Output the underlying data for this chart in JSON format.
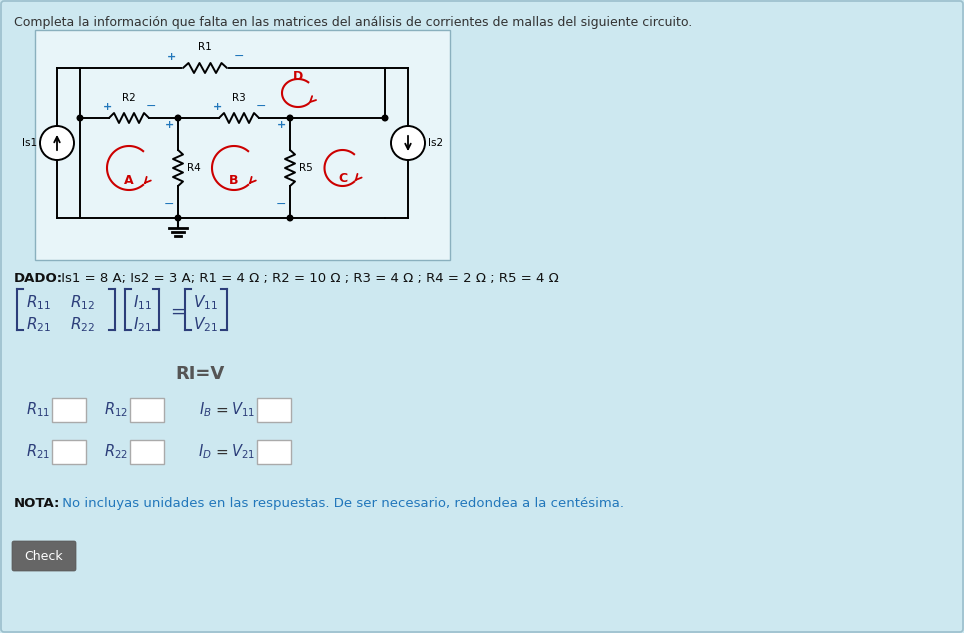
{
  "bg_color": "#cde8f0",
  "title_text": "Completa la información que falta en las matrices del análisis de corrientes de mallas del siguiente circuito.",
  "dado_label": "DADO:",
  "dado_rest": " Is1 = 8 A; Is2 = 3 A; R1 = 4 Ω ; R2 = 10 Ω ; R3 = 4 Ω ; R4 = 2 Ω ; R5 = 4 Ω",
  "nota_label": "NOTA:",
  "nota_rest": " No incluyas unidades en las respuestas. De ser necesario, redondea a la centésima.",
  "check_text": "Check",
  "ri_eq_v": "RI=V",
  "matrix_color": "#2c3e7a",
  "circuit_border": "#8ab0be",
  "wire_color": "#000000",
  "red_color": "#cc0000",
  "plus_color": "#2277bb",
  "check_bg": "#666666",
  "check_fg": "#ffffff",
  "nota_color": "#2277bb",
  "fig_w": 9.64,
  "fig_h": 6.33
}
